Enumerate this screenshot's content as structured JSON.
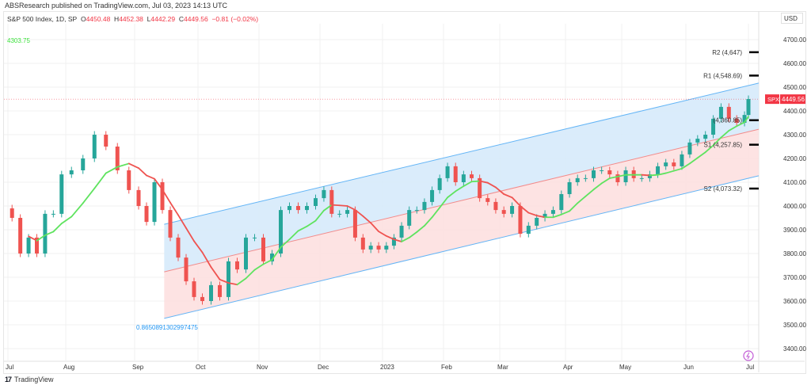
{
  "header": {
    "published": "ABSResearch published on TradingView.com, Jul 03, 2023 14:13 UTC",
    "symbol": "S&P 500 Index, 1D, SP",
    "open_label": "O",
    "open": "4450.48",
    "high_label": "H",
    "high": "4452.38",
    "low_label": "L",
    "low": "4442.29",
    "close_label": "C",
    "close": "4449.56",
    "change": "−0.81 (−0.02%)"
  },
  "currency": "USD",
  "footer": {
    "brand": "TradingView",
    "logo": "17"
  },
  "annotations": {
    "high_label": "4303.75",
    "channel_label": "0.8650891302997475"
  },
  "price_tag": {
    "symbol": "SPX",
    "value": "4449.56"
  },
  "colors": {
    "up": "#26a69a",
    "down": "#ef5350",
    "ma_up": "#5fe35f",
    "ma_down": "#ef5350",
    "channel_line": "#64b5f6",
    "channel_mid": "#f28b8b",
    "upper_fill": "#d6eafb",
    "lower_fill": "#fde0e0",
    "last_price": "#f23645"
  },
  "chart_data": {
    "type": "candlestick",
    "y_ticks": [
      4700,
      4600,
      4500,
      4400,
      4300,
      4200,
      4100,
      4000,
      3900,
      3800,
      3700,
      3600,
      3500,
      3400
    ],
    "y_tick_labels": [
      "4700.00",
      "4600.00",
      "4500.00",
      "4400.00",
      "4300.00",
      "4200.00",
      "4100.00",
      "4000.00",
      "3900.00",
      "3800.00",
      "3700.00",
      "3600.00",
      "3500.00",
      "3400.00"
    ],
    "ylim": [
      3350,
      4790
    ],
    "x_ticks": [
      "Jul",
      "Aug",
      "Sep",
      "Oct",
      "Nov",
      "Dec",
      "2023",
      "Feb",
      "Mar",
      "Apr",
      "May",
      "Jun",
      "Jul"
    ],
    "months": [
      {
        "month": "2022-07",
        "closes": [
          3950,
          3800,
          3867,
          3800,
          3967,
          3967,
          4133
        ]
      },
      {
        "month": "2022-08",
        "closes": [
          4150,
          4200,
          4300,
          4250,
          4150,
          4067
        ]
      },
      {
        "month": "2022-09",
        "closes": [
          4000,
          3933,
          4100,
          3983,
          3867,
          3783,
          3683,
          3617
        ]
      },
      {
        "month": "2022-10",
        "closes": [
          3600,
          3667,
          3617,
          3767,
          3733,
          3867,
          3867
        ]
      },
      {
        "month": "2022-11",
        "closes": [
          3767,
          3800,
          3983,
          4000,
          3983,
          4000,
          4033
        ]
      },
      {
        "month": "2022-12",
        "closes": [
          4067,
          3967,
          3967,
          3983,
          3867,
          3817,
          3833,
          3817
        ]
      },
      {
        "month": "2023-01",
        "closes": [
          3833,
          3867,
          3917,
          3983,
          3983,
          4017,
          4067,
          4117
        ]
      },
      {
        "month": "2023-02",
        "closes": [
          4167,
          4100,
          4133,
          4117,
          4033,
          4017,
          3983
        ]
      },
      {
        "month": "2023-03",
        "closes": [
          3967,
          4000,
          3883,
          3917,
          3950,
          3967,
          3983,
          4050
        ]
      },
      {
        "month": "2023-04",
        "closes": [
          4100,
          4117,
          4117,
          4150,
          4150,
          4133,
          4100
        ]
      },
      {
        "month": "2023-05",
        "closes": [
          4150,
          4117,
          4117,
          4133,
          4167,
          4183,
          4167,
          4217
        ]
      },
      {
        "month": "2023-06",
        "closes": [
          4267,
          4283,
          4300,
          4367,
          4417,
          4367,
          4350,
          4383
        ]
      },
      {
        "month": "2023-07",
        "closes": [
          4450
        ]
      }
    ],
    "channel": {
      "start": "2022-09-15",
      "upper": [
        3923,
        4517
      ],
      "middle": [
        3723,
        4323
      ],
      "lower": [
        3527,
        4127
      ]
    },
    "levels": [
      {
        "label": "R2 (4,647)",
        "value": 4647
      },
      {
        "label": "R1 (4,548.69)",
        "value": 4548.69
      },
      {
        "label": "(4,360.85)",
        "value": 4360.85
      },
      {
        "label": "S1 (4,257.85)",
        "value": 4257.85
      },
      {
        "label": "S2 (4,073.32)",
        "value": 4073.32
      }
    ],
    "last_price": 4449.56
  }
}
